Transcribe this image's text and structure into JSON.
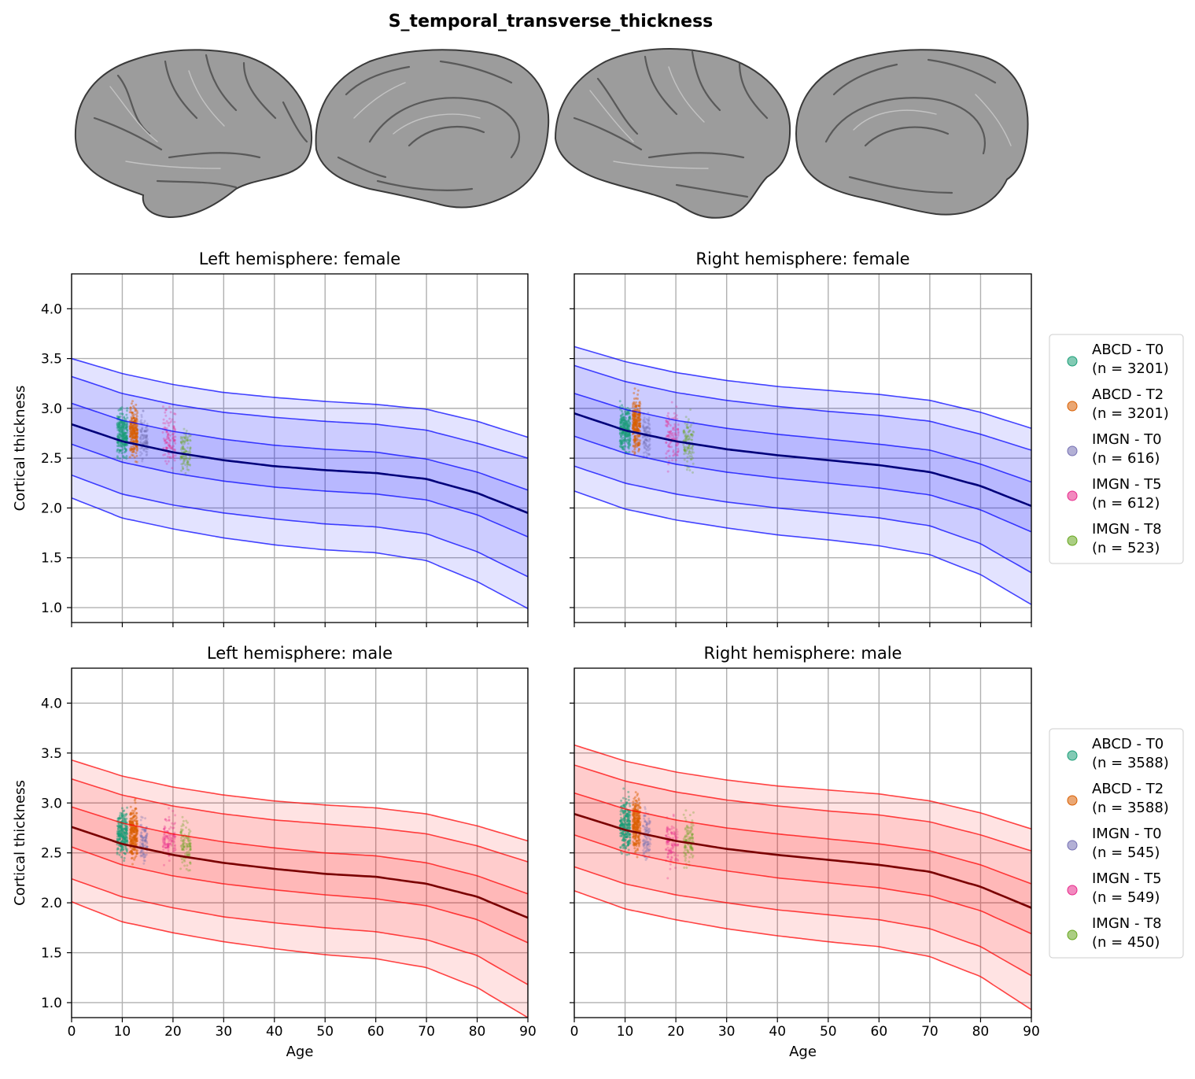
{
  "title": "S_temporal_transverse_thickness",
  "chart_data": [
    {
      "type": "line",
      "title": "Left hemisphere: female",
      "xlabel": "",
      "ylabel": "Cortical thickness",
      "xlim": [
        0,
        90
      ],
      "ylim": [
        0.85,
        4.35
      ],
      "x_ticks": [
        0,
        10,
        20,
        30,
        40,
        50,
        60,
        70,
        80,
        90
      ],
      "y_ticks": [
        1.0,
        1.5,
        2.0,
        2.5,
        3.0,
        3.5,
        4.0
      ],
      "grid": true,
      "band_color": "#0000ff",
      "median_color": "#00007a",
      "centiles": [
        {
          "x": [
            0,
            10,
            20,
            30,
            40,
            50,
            60,
            70,
            80,
            90
          ],
          "y": [
            3.5,
            3.35,
            3.24,
            3.16,
            3.11,
            3.07,
            3.04,
            2.99,
            2.87,
            2.71
          ]
        },
        {
          "x": [
            0,
            10,
            20,
            30,
            40,
            50,
            60,
            70,
            80,
            90
          ],
          "y": [
            3.32,
            3.15,
            3.04,
            2.96,
            2.91,
            2.87,
            2.84,
            2.78,
            2.65,
            2.5
          ]
        },
        {
          "x": [
            0,
            10,
            20,
            30,
            40,
            50,
            60,
            70,
            80,
            90
          ],
          "y": [
            3.05,
            2.88,
            2.77,
            2.69,
            2.63,
            2.59,
            2.56,
            2.49,
            2.36,
            2.18
          ]
        },
        {
          "x": [
            0,
            10,
            20,
            30,
            40,
            50,
            60,
            70,
            80,
            90
          ],
          "y": [
            2.84,
            2.67,
            2.56,
            2.48,
            2.42,
            2.38,
            2.35,
            2.29,
            2.15,
            1.95
          ]
        },
        {
          "x": [
            0,
            10,
            20,
            30,
            40,
            50,
            60,
            70,
            80,
            90
          ],
          "y": [
            2.64,
            2.46,
            2.35,
            2.27,
            2.21,
            2.17,
            2.14,
            2.08,
            1.93,
            1.71
          ]
        },
        {
          "x": [
            0,
            10,
            20,
            30,
            40,
            50,
            60,
            70,
            80,
            90
          ],
          "y": [
            2.33,
            2.14,
            2.03,
            1.95,
            1.89,
            1.84,
            1.81,
            1.74,
            1.56,
            1.31
          ]
        },
        {
          "x": [
            0,
            10,
            20,
            30,
            40,
            50,
            60,
            70,
            80,
            90
          ],
          "y": [
            2.1,
            1.9,
            1.79,
            1.7,
            1.63,
            1.58,
            1.55,
            1.47,
            1.26,
            0.99
          ]
        }
      ],
      "scatter_groups": [
        {
          "age_range": [
            9,
            11
          ],
          "y_range": [
            2.15,
            3.35
          ]
        },
        {
          "age_range": [
            11.5,
            13
          ],
          "y_range": [
            2.12,
            3.4
          ]
        },
        {
          "age_range": [
            13.5,
            15
          ],
          "y_range": [
            2.1,
            3.3
          ]
        },
        {
          "age_range": [
            18,
            20.5
          ],
          "y_range": [
            2.0,
            3.4
          ]
        },
        {
          "age_range": [
            21.5,
            23.5
          ],
          "y_range": [
            2.05,
            3.1
          ]
        }
      ]
    },
    {
      "type": "line",
      "title": "Right hemisphere: female",
      "xlabel": "",
      "ylabel": "",
      "xlim": [
        0,
        90
      ],
      "ylim": [
        0.85,
        4.35
      ],
      "x_ticks": [
        0,
        10,
        20,
        30,
        40,
        50,
        60,
        70,
        80,
        90
      ],
      "y_ticks": [
        1.0,
        1.5,
        2.0,
        2.5,
        3.0,
        3.5,
        4.0
      ],
      "grid": true,
      "band_color": "#0000ff",
      "median_color": "#00007a",
      "centiles": [
        {
          "x": [
            0,
            10,
            20,
            30,
            40,
            50,
            60,
            70,
            80,
            90
          ],
          "y": [
            3.62,
            3.47,
            3.36,
            3.28,
            3.22,
            3.18,
            3.14,
            3.08,
            2.96,
            2.8
          ]
        },
        {
          "x": [
            0,
            10,
            20,
            30,
            40,
            50,
            60,
            70,
            80,
            90
          ],
          "y": [
            3.43,
            3.27,
            3.16,
            3.08,
            3.02,
            2.97,
            2.93,
            2.87,
            2.74,
            2.58
          ]
        },
        {
          "x": [
            0,
            10,
            20,
            30,
            40,
            50,
            60,
            70,
            80,
            90
          ],
          "y": [
            3.15,
            2.99,
            2.88,
            2.8,
            2.74,
            2.69,
            2.64,
            2.58,
            2.44,
            2.26
          ]
        },
        {
          "x": [
            0,
            10,
            20,
            30,
            40,
            50,
            60,
            70,
            80,
            90
          ],
          "y": [
            2.95,
            2.78,
            2.67,
            2.59,
            2.53,
            2.48,
            2.43,
            2.36,
            2.22,
            2.02
          ]
        },
        {
          "x": [
            0,
            10,
            20,
            30,
            40,
            50,
            60,
            70,
            80,
            90
          ],
          "y": [
            2.72,
            2.55,
            2.44,
            2.36,
            2.3,
            2.25,
            2.2,
            2.13,
            1.98,
            1.76
          ]
        },
        {
          "x": [
            0,
            10,
            20,
            30,
            40,
            50,
            60,
            70,
            80,
            90
          ],
          "y": [
            2.42,
            2.25,
            2.14,
            2.06,
            2.0,
            1.95,
            1.9,
            1.82,
            1.64,
            1.35
          ]
        },
        {
          "x": [
            0,
            10,
            20,
            30,
            40,
            50,
            60,
            70,
            80,
            90
          ],
          "y": [
            2.17,
            1.99,
            1.88,
            1.8,
            1.73,
            1.68,
            1.62,
            1.53,
            1.33,
            1.03
          ]
        }
      ],
      "scatter_groups": [
        {
          "age_range": [
            9,
            11
          ],
          "y_range": [
            2.15,
            3.45
          ]
        },
        {
          "age_range": [
            11.5,
            13
          ],
          "y_range": [
            2.2,
            3.5
          ]
        },
        {
          "age_range": [
            13.5,
            15
          ],
          "y_range": [
            2.1,
            3.35
          ]
        },
        {
          "age_range": [
            18,
            20.5
          ],
          "y_range": [
            2.0,
            3.4
          ]
        },
        {
          "age_range": [
            21.5,
            23.5
          ],
          "y_range": [
            2.0,
            3.3
          ]
        }
      ]
    },
    {
      "type": "line",
      "title": "Left hemisphere: male",
      "xlabel": "Age",
      "ylabel": "Cortical thickness",
      "xlim": [
        0,
        90
      ],
      "ylim": [
        0.85,
        4.35
      ],
      "x_ticks": [
        0,
        10,
        20,
        30,
        40,
        50,
        60,
        70,
        80,
        90
      ],
      "y_ticks": [
        1.0,
        1.5,
        2.0,
        2.5,
        3.0,
        3.5,
        4.0
      ],
      "grid": true,
      "band_color": "#ff0000",
      "median_color": "#7a0000",
      "centiles": [
        {
          "x": [
            0,
            10,
            20,
            30,
            40,
            50,
            60,
            70,
            80,
            90
          ],
          "y": [
            3.43,
            3.27,
            3.16,
            3.08,
            3.02,
            2.98,
            2.95,
            2.89,
            2.77,
            2.62
          ]
        },
        {
          "x": [
            0,
            10,
            20,
            30,
            40,
            50,
            60,
            70,
            80,
            90
          ],
          "y": [
            3.24,
            3.08,
            2.97,
            2.89,
            2.83,
            2.79,
            2.75,
            2.69,
            2.57,
            2.41
          ]
        },
        {
          "x": [
            0,
            10,
            20,
            30,
            40,
            50,
            60,
            70,
            80,
            90
          ],
          "y": [
            2.96,
            2.8,
            2.69,
            2.61,
            2.55,
            2.5,
            2.47,
            2.4,
            2.27,
            2.09
          ]
        },
        {
          "x": [
            0,
            10,
            20,
            30,
            40,
            50,
            60,
            70,
            80,
            90
          ],
          "y": [
            2.76,
            2.59,
            2.48,
            2.4,
            2.34,
            2.29,
            2.26,
            2.19,
            2.06,
            1.85
          ]
        },
        {
          "x": [
            0,
            10,
            20,
            30,
            40,
            50,
            60,
            70,
            80,
            90
          ],
          "y": [
            2.56,
            2.38,
            2.27,
            2.19,
            2.13,
            2.08,
            2.04,
            1.97,
            1.83,
            1.6
          ]
        },
        {
          "x": [
            0,
            10,
            20,
            30,
            40,
            50,
            60,
            70,
            80,
            90
          ],
          "y": [
            2.24,
            2.06,
            1.95,
            1.86,
            1.8,
            1.75,
            1.71,
            1.63,
            1.47,
            1.18
          ]
        },
        {
          "x": [
            0,
            10,
            20,
            30,
            40,
            50,
            60,
            70,
            80,
            90
          ],
          "y": [
            2.01,
            1.81,
            1.7,
            1.61,
            1.54,
            1.48,
            1.44,
            1.35,
            1.15,
            0.85
          ]
        }
      ],
      "scatter_groups": [
        {
          "age_range": [
            9,
            11
          ],
          "y_range": [
            2.1,
            3.3
          ]
        },
        {
          "age_range": [
            11.5,
            13
          ],
          "y_range": [
            2.05,
            3.35
          ]
        },
        {
          "age_range": [
            13.5,
            15
          ],
          "y_range": [
            2.05,
            3.2
          ]
        },
        {
          "age_range": [
            18,
            20.5
          ],
          "y_range": [
            2.0,
            3.3
          ]
        },
        {
          "age_range": [
            21.5,
            23.5
          ],
          "y_range": [
            1.95,
            3.2
          ]
        }
      ]
    },
    {
      "type": "line",
      "title": "Right hemisphere: male",
      "xlabel": "Age",
      "ylabel": "",
      "xlim": [
        0,
        90
      ],
      "ylim": [
        0.85,
        4.35
      ],
      "x_ticks": [
        0,
        10,
        20,
        30,
        40,
        50,
        60,
        70,
        80,
        90
      ],
      "y_ticks": [
        1.0,
        1.5,
        2.0,
        2.5,
        3.0,
        3.5,
        4.0
      ],
      "grid": true,
      "band_color": "#ff0000",
      "median_color": "#7a0000",
      "centiles": [
        {
          "x": [
            0,
            10,
            20,
            30,
            40,
            50,
            60,
            70,
            80,
            90
          ],
          "y": [
            3.58,
            3.42,
            3.31,
            3.23,
            3.17,
            3.13,
            3.09,
            3.02,
            2.9,
            2.74
          ]
        },
        {
          "x": [
            0,
            10,
            20,
            30,
            40,
            50,
            60,
            70,
            80,
            90
          ],
          "y": [
            3.38,
            3.22,
            3.11,
            3.03,
            2.97,
            2.92,
            2.88,
            2.81,
            2.68,
            2.52
          ]
        },
        {
          "x": [
            0,
            10,
            20,
            30,
            40,
            50,
            60,
            70,
            80,
            90
          ],
          "y": [
            3.1,
            2.94,
            2.83,
            2.75,
            2.69,
            2.64,
            2.59,
            2.52,
            2.38,
            2.19
          ]
        },
        {
          "x": [
            0,
            10,
            20,
            30,
            40,
            50,
            60,
            70,
            80,
            90
          ],
          "y": [
            2.89,
            2.73,
            2.62,
            2.54,
            2.48,
            2.43,
            2.38,
            2.31,
            2.16,
            1.95
          ]
        },
        {
          "x": [
            0,
            10,
            20,
            30,
            40,
            50,
            60,
            70,
            80,
            90
          ],
          "y": [
            2.68,
            2.51,
            2.4,
            2.32,
            2.25,
            2.2,
            2.15,
            2.07,
            1.92,
            1.69
          ]
        },
        {
          "x": [
            0,
            10,
            20,
            30,
            40,
            50,
            60,
            70,
            80,
            90
          ],
          "y": [
            2.36,
            2.19,
            2.08,
            2.0,
            1.93,
            1.88,
            1.83,
            1.74,
            1.56,
            1.27
          ]
        },
        {
          "x": [
            0,
            10,
            20,
            30,
            40,
            50,
            60,
            70,
            80,
            90
          ],
          "y": [
            2.12,
            1.94,
            1.83,
            1.74,
            1.67,
            1.61,
            1.56,
            1.46,
            1.26,
            0.93
          ]
        }
      ],
      "scatter_groups": [
        {
          "age_range": [
            9,
            11
          ],
          "y_range": [
            2.1,
            3.45
          ]
        },
        {
          "age_range": [
            11.5,
            13
          ],
          "y_range": [
            2.1,
            3.5
          ]
        },
        {
          "age_range": [
            13.5,
            15
          ],
          "y_range": [
            2.05,
            3.3
          ]
        },
        {
          "age_range": [
            18,
            20.5
          ],
          "y_range": [
            1.9,
            3.3
          ]
        },
        {
          "age_range": [
            21.5,
            23.5
          ],
          "y_range": [
            1.95,
            3.3
          ]
        }
      ]
    }
  ],
  "legends": [
    {
      "items": [
        {
          "label": "ABCD - T0",
          "count": "(n = 3201)",
          "color": "#1b9e77"
        },
        {
          "label": "ABCD - T2",
          "count": "(n = 3201)",
          "color": "#d95f02"
        },
        {
          "label": "IMGN - T0",
          "count": "(n = 616)",
          "color": "#7570b3"
        },
        {
          "label": "IMGN - T5",
          "count": "(n = 612)",
          "color": "#e7298a"
        },
        {
          "label": "IMGN - T8",
          "count": "(n = 523)",
          "color": "#66a61e"
        }
      ]
    },
    {
      "items": [
        {
          "label": "ABCD - T0",
          "count": "(n = 3588)",
          "color": "#1b9e77"
        },
        {
          "label": "ABCD - T2",
          "count": "(n = 3588)",
          "color": "#d95f02"
        },
        {
          "label": "IMGN - T0",
          "count": "(n = 545)",
          "color": "#7570b3"
        },
        {
          "label": "IMGN - T5",
          "count": "(n = 549)",
          "color": "#e7298a"
        },
        {
          "label": "IMGN - T8",
          "count": "(n = 450)",
          "color": "#66a61e"
        }
      ]
    }
  ]
}
